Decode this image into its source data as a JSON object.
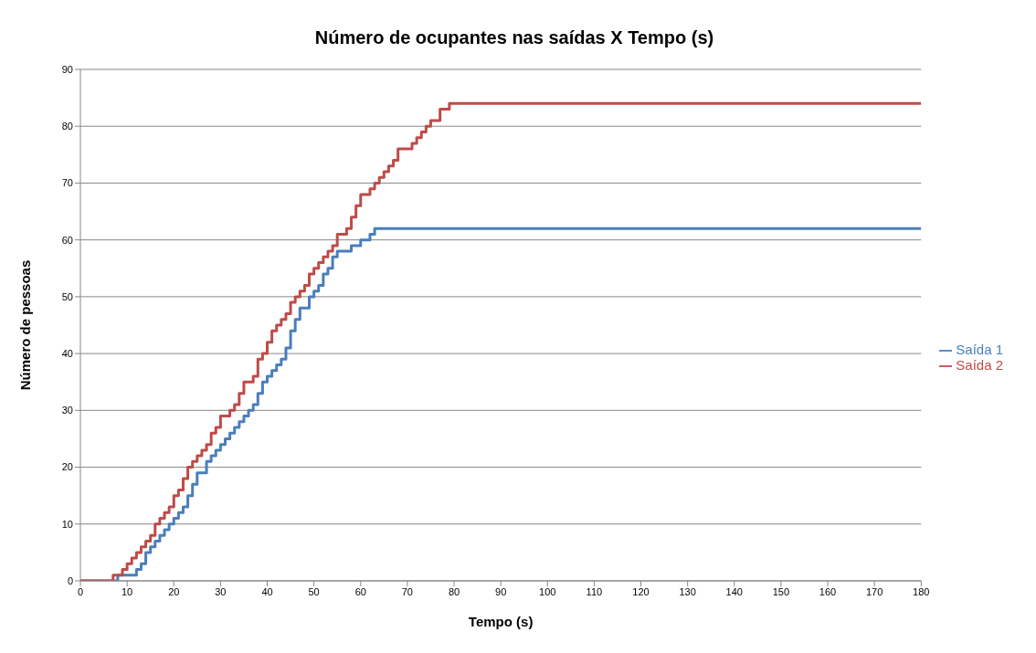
{
  "chart_data": {
    "type": "step",
    "title": "Número de ocupantes nas saídas X Tempo (s)",
    "xlabel": "Tempo (s)",
    "ylabel": "Número de pessoas",
    "xlim": [
      0,
      180
    ],
    "xticks": [
      0,
      10,
      20,
      30,
      40,
      50,
      60,
      70,
      80,
      90,
      100,
      110,
      120,
      130,
      140,
      150,
      160,
      170,
      180
    ],
    "ylim": [
      0,
      90
    ],
    "yticks": [
      0,
      10,
      20,
      30,
      40,
      50,
      60,
      70,
      80,
      90
    ],
    "grid": "y",
    "legend": "right",
    "marker": "none",
    "line_style": "solid",
    "series": [
      {
        "name": "Saída 1",
        "color": "#4a7ebb",
        "x": [
          0,
          8,
          12,
          13,
          14,
          15,
          16,
          17,
          18,
          19,
          20,
          21,
          22,
          23,
          24,
          25,
          27,
          28,
          29,
          30,
          31,
          32,
          33,
          34,
          35,
          36,
          37,
          38,
          39,
          40,
          41,
          42,
          43,
          44,
          45,
          46,
          47,
          49,
          50,
          51,
          52,
          53,
          54,
          55,
          58,
          60,
          62,
          63,
          180
        ],
        "values": [
          0,
          1,
          2,
          3,
          5,
          6,
          7,
          8,
          9,
          10,
          11,
          12,
          13,
          15,
          17,
          19,
          21,
          22,
          23,
          24,
          25,
          26,
          27,
          28,
          29,
          30,
          31,
          33,
          35,
          36,
          37,
          38,
          39,
          41,
          44,
          46,
          48,
          50,
          51,
          52,
          54,
          55,
          57,
          58,
          59,
          60,
          61,
          62,
          62
        ]
      },
      {
        "name": "Saída 2",
        "color": "#be4b48",
        "x": [
          0,
          7,
          9,
          10,
          11,
          12,
          13,
          14,
          15,
          16,
          17,
          18,
          19,
          20,
          21,
          22,
          23,
          24,
          25,
          26,
          27,
          28,
          29,
          30,
          32,
          33,
          34,
          35,
          37,
          38,
          39,
          40,
          41,
          42,
          43,
          44,
          45,
          46,
          47,
          48,
          49,
          50,
          51,
          52,
          53,
          54,
          55,
          57,
          58,
          59,
          60,
          62,
          63,
          64,
          65,
          66,
          67,
          68,
          71,
          72,
          73,
          74,
          75,
          77,
          79,
          180
        ],
        "values": [
          0,
          1,
          2,
          3,
          4,
          5,
          6,
          7,
          8,
          10,
          11,
          12,
          13,
          15,
          16,
          18,
          20,
          21,
          22,
          23,
          24,
          26,
          27,
          29,
          30,
          31,
          33,
          35,
          36,
          39,
          40,
          42,
          44,
          45,
          46,
          47,
          49,
          50,
          51,
          52,
          54,
          55,
          56,
          57,
          58,
          59,
          61,
          62,
          64,
          66,
          68,
          69,
          70,
          71,
          72,
          73,
          74,
          76,
          77,
          78,
          79,
          80,
          81,
          83,
          84,
          84
        ]
      }
    ]
  }
}
